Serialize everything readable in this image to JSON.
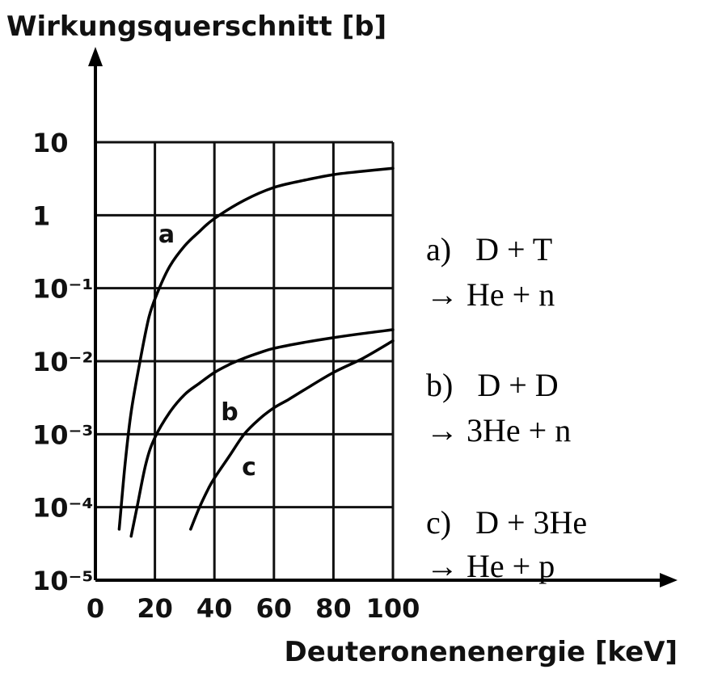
{
  "chart_data": {
    "type": "line",
    "ylabel": "Wirkungsquerschnitt [b]",
    "xlabel": "Deuteronenenergie [keV]",
    "x_ticks": [
      "0",
      "20",
      "40",
      "60",
      "80",
      "100"
    ],
    "y_ticks": [
      "10",
      "1",
      "10⁻¹",
      "10⁻²",
      "10⁻³",
      "10⁻⁴",
      "10⁻⁵"
    ],
    "x_range": [
      0,
      100
    ],
    "y_range_log10": [
      -5,
      1
    ],
    "y_scale": "log",
    "grid": true,
    "series": [
      {
        "name": "a",
        "x": [
          8,
          10,
          12,
          15,
          18,
          21,
          25,
          30,
          35,
          40,
          50,
          60,
          70,
          80,
          90,
          100
        ],
        "y": [
          5e-05,
          0.0004,
          0.002,
          0.01,
          0.04,
          0.09,
          0.2,
          0.38,
          0.6,
          0.9,
          1.6,
          2.4,
          3.0,
          3.6,
          4.0,
          4.4
        ]
      },
      {
        "name": "b",
        "x": [
          12,
          14,
          17,
          20,
          25,
          30,
          35,
          40,
          45,
          50,
          55,
          60,
          70,
          80,
          90,
          100
        ],
        "y": [
          4e-05,
          0.0001,
          0.0004,
          0.0009,
          0.002,
          0.0035,
          0.005,
          0.007,
          0.009,
          0.011,
          0.013,
          0.015,
          0.018,
          0.021,
          0.024,
          0.027
        ]
      },
      {
        "name": "c",
        "x": [
          32,
          35,
          38,
          40,
          45,
          50,
          55,
          60,
          65,
          70,
          80,
          90,
          100
        ],
        "y": [
          5e-05,
          0.0001,
          0.00018,
          0.00025,
          0.0005,
          0.001,
          0.0016,
          0.0023,
          0.003,
          0.004,
          0.007,
          0.011,
          0.019
        ]
      }
    ],
    "legend": [
      {
        "label": "a)   D + T",
        "product": "→ He + n"
      },
      {
        "label": "b)   D + D",
        "product": "→ 3He + n"
      },
      {
        "label": "c)   D + 3He",
        "product": "→ He + p"
      }
    ]
  }
}
